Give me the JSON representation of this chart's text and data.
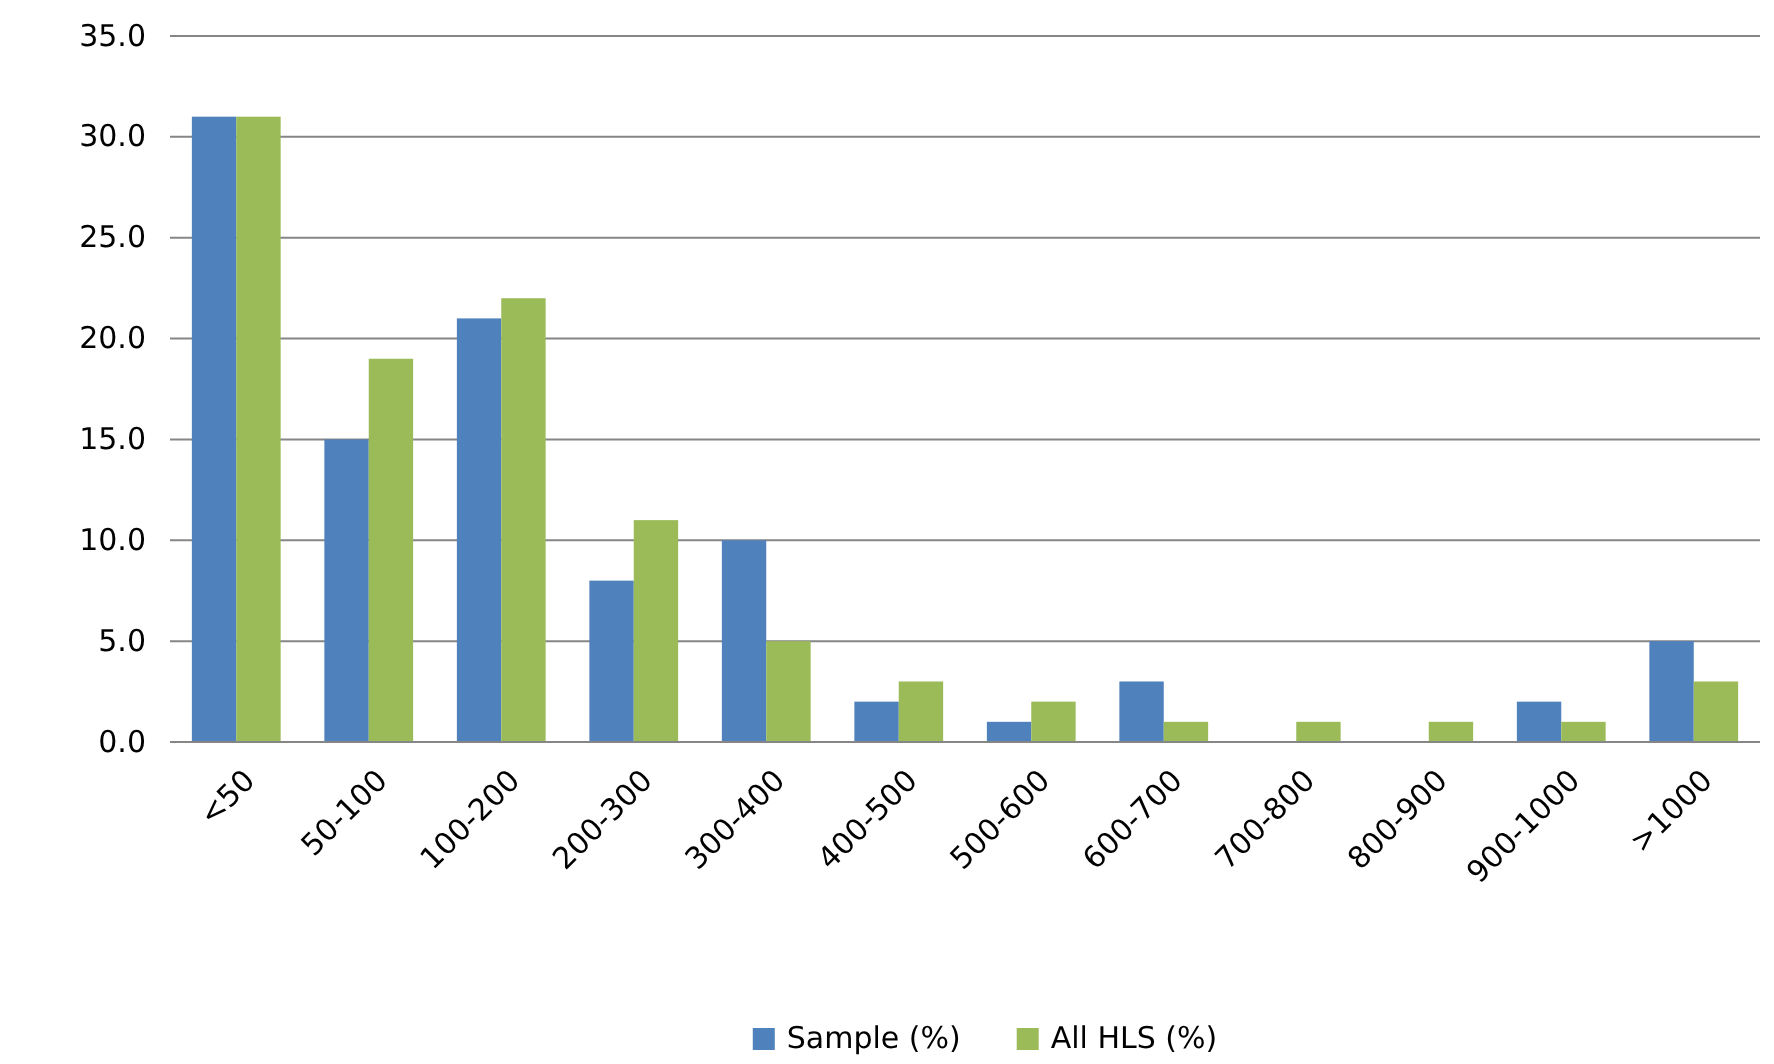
{
  "chart_data": {
    "type": "bar",
    "categories": [
      "<50",
      "50-100",
      "100-200",
      "200-300",
      "300-400",
      "400-500",
      "500-600",
      "600-700",
      "700-800",
      "800-900",
      "900-1000",
      ">1000"
    ],
    "series": [
      {
        "name": "Sample (%)",
        "color": "#4f81bd",
        "values": [
          31,
          15,
          21,
          8,
          10,
          2,
          1,
          3,
          0,
          0,
          2,
          5
        ]
      },
      {
        "name": "All HLS (%)",
        "color": "#9bbb59",
        "values": [
          31,
          19,
          22,
          11,
          5,
          3,
          2,
          1,
          1,
          1,
          1,
          3
        ]
      }
    ],
    "ylim": [
      0,
      35
    ],
    "yticks": [
      {
        "value": 0,
        "label": "0.0"
      },
      {
        "value": 5,
        "label": "5.0"
      },
      {
        "value": 10,
        "label": "10.0"
      },
      {
        "value": 15,
        "label": "15.0"
      },
      {
        "value": 20,
        "label": "20.0"
      },
      {
        "value": 25,
        "label": "25.0"
      },
      {
        "value": 30,
        "label": "30.0"
      },
      {
        "value": 35,
        "label": "35.0"
      }
    ],
    "grid": "y",
    "legend": "bottom"
  }
}
